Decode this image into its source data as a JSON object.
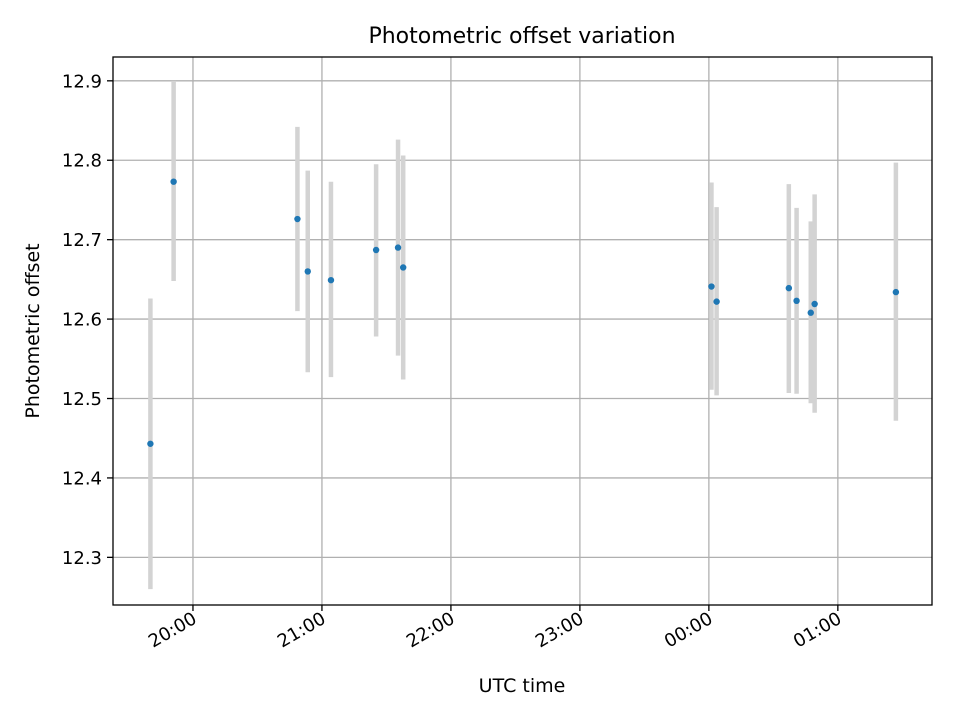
{
  "chart_data": {
    "type": "scatter",
    "title": "Photometric offset variation",
    "xlabel": "UTC time",
    "ylabel": "Photometric offset",
    "x_unit": "hours",
    "xlim": [
      19.38,
      25.73
    ],
    "ylim": [
      12.24,
      12.93
    ],
    "x_ticks": [
      {
        "value": 20,
        "label": "20:00"
      },
      {
        "value": 21,
        "label": "21:00"
      },
      {
        "value": 22,
        "label": "22:00"
      },
      {
        "value": 23,
        "label": "23:00"
      },
      {
        "value": 24,
        "label": "00:00"
      },
      {
        "value": 25,
        "label": "01:00"
      }
    ],
    "y_ticks": [
      {
        "value": 12.3,
        "label": "12.3"
      },
      {
        "value": 12.4,
        "label": "12.4"
      },
      {
        "value": 12.5,
        "label": "12.5"
      },
      {
        "value": 12.6,
        "label": "12.6"
      },
      {
        "value": 12.7,
        "label": "12.7"
      },
      {
        "value": 12.8,
        "label": "12.8"
      },
      {
        "value": 12.9,
        "label": "12.9"
      }
    ],
    "grid": true,
    "colors": {
      "marker": "#1f77b4",
      "errorbar": "#d3d3d3",
      "grid": "#b0b0b0",
      "spine": "#000000"
    },
    "series": [
      {
        "points": [
          {
            "x": 19.67,
            "y": 12.443,
            "err_low": 12.26,
            "err_high": 12.626
          },
          {
            "x": 19.85,
            "y": 12.773,
            "err_low": 12.648,
            "err_high": 12.9
          },
          {
            "x": 20.81,
            "y": 12.726,
            "err_low": 12.61,
            "err_high": 12.842
          },
          {
            "x": 20.89,
            "y": 12.66,
            "err_low": 12.533,
            "err_high": 12.787
          },
          {
            "x": 21.07,
            "y": 12.649,
            "err_low": 12.527,
            "err_high": 12.773
          },
          {
            "x": 21.42,
            "y": 12.687,
            "err_low": 12.578,
            "err_high": 12.795
          },
          {
            "x": 21.59,
            "y": 12.69,
            "err_low": 12.554,
            "err_high": 12.826
          },
          {
            "x": 21.63,
            "y": 12.665,
            "err_low": 12.524,
            "err_high": 12.806
          },
          {
            "x": 24.02,
            "y": 12.641,
            "err_low": 12.511,
            "err_high": 12.772
          },
          {
            "x": 24.06,
            "y": 12.622,
            "err_low": 12.504,
            "err_high": 12.741
          },
          {
            "x": 24.62,
            "y": 12.639,
            "err_low": 12.507,
            "err_high": 12.77
          },
          {
            "x": 24.68,
            "y": 12.623,
            "err_low": 12.506,
            "err_high": 12.74
          },
          {
            "x": 24.79,
            "y": 12.608,
            "err_low": 12.494,
            "err_high": 12.723
          },
          {
            "x": 24.82,
            "y": 12.619,
            "err_low": 12.482,
            "err_high": 12.757
          },
          {
            "x": 25.45,
            "y": 12.634,
            "err_low": 12.472,
            "err_high": 12.797
          }
        ]
      }
    ]
  }
}
